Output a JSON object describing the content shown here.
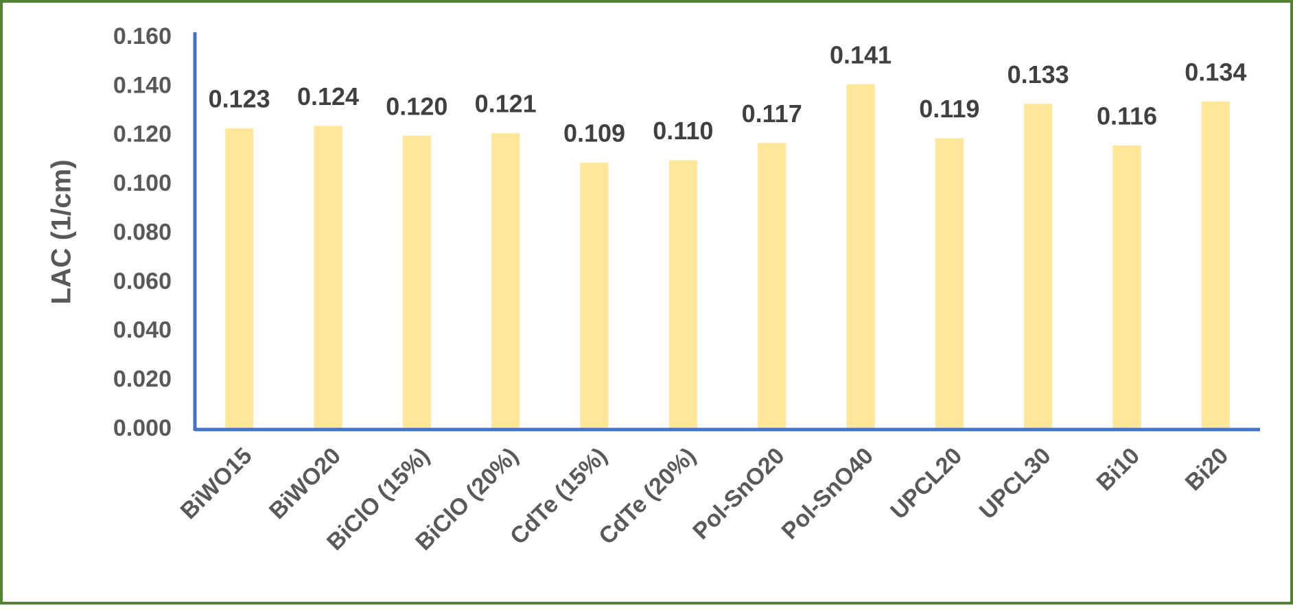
{
  "chart_data": {
    "type": "bar",
    "y_label": "LAC (1/cm)",
    "categories": [
      "BiWO15",
      "BiWO20",
      "BiClO (15%)",
      "BiClO (20%)",
      "CdTe (15%)",
      "CdTe (20%)",
      "Pol-SnO20",
      "Pol-SnO40",
      "UPCL20",
      "UPCL30",
      "Bi10",
      "Bi20"
    ],
    "values": [
      0.123,
      0.124,
      0.12,
      0.121,
      0.109,
      0.11,
      0.117,
      0.141,
      0.119,
      0.133,
      0.116,
      0.134
    ],
    "value_labels": [
      "0.123",
      "0.124",
      "0.120",
      "0.121",
      "0.109",
      "0.110",
      "0.117",
      "0.141",
      "0.119",
      "0.133",
      "0.116",
      "0.134"
    ],
    "color": "#ffe699",
    "ylim": [
      0,
      0.16
    ],
    "yticks": [
      {
        "value": 0,
        "label": "0.000"
      },
      {
        "value": 0.02,
        "label": "0.020"
      },
      {
        "value": 0.04,
        "label": "0.040"
      },
      {
        "value": 0.06,
        "label": "0.060"
      },
      {
        "value": 0.08,
        "label": "0.080"
      },
      {
        "value": 0.1,
        "label": "0.100"
      },
      {
        "value": 0.12,
        "label": "0.120"
      },
      {
        "value": 0.14,
        "label": "0.140"
      },
      {
        "value": 0.16,
        "label": "0.160"
      }
    ],
    "grid": false
  }
}
